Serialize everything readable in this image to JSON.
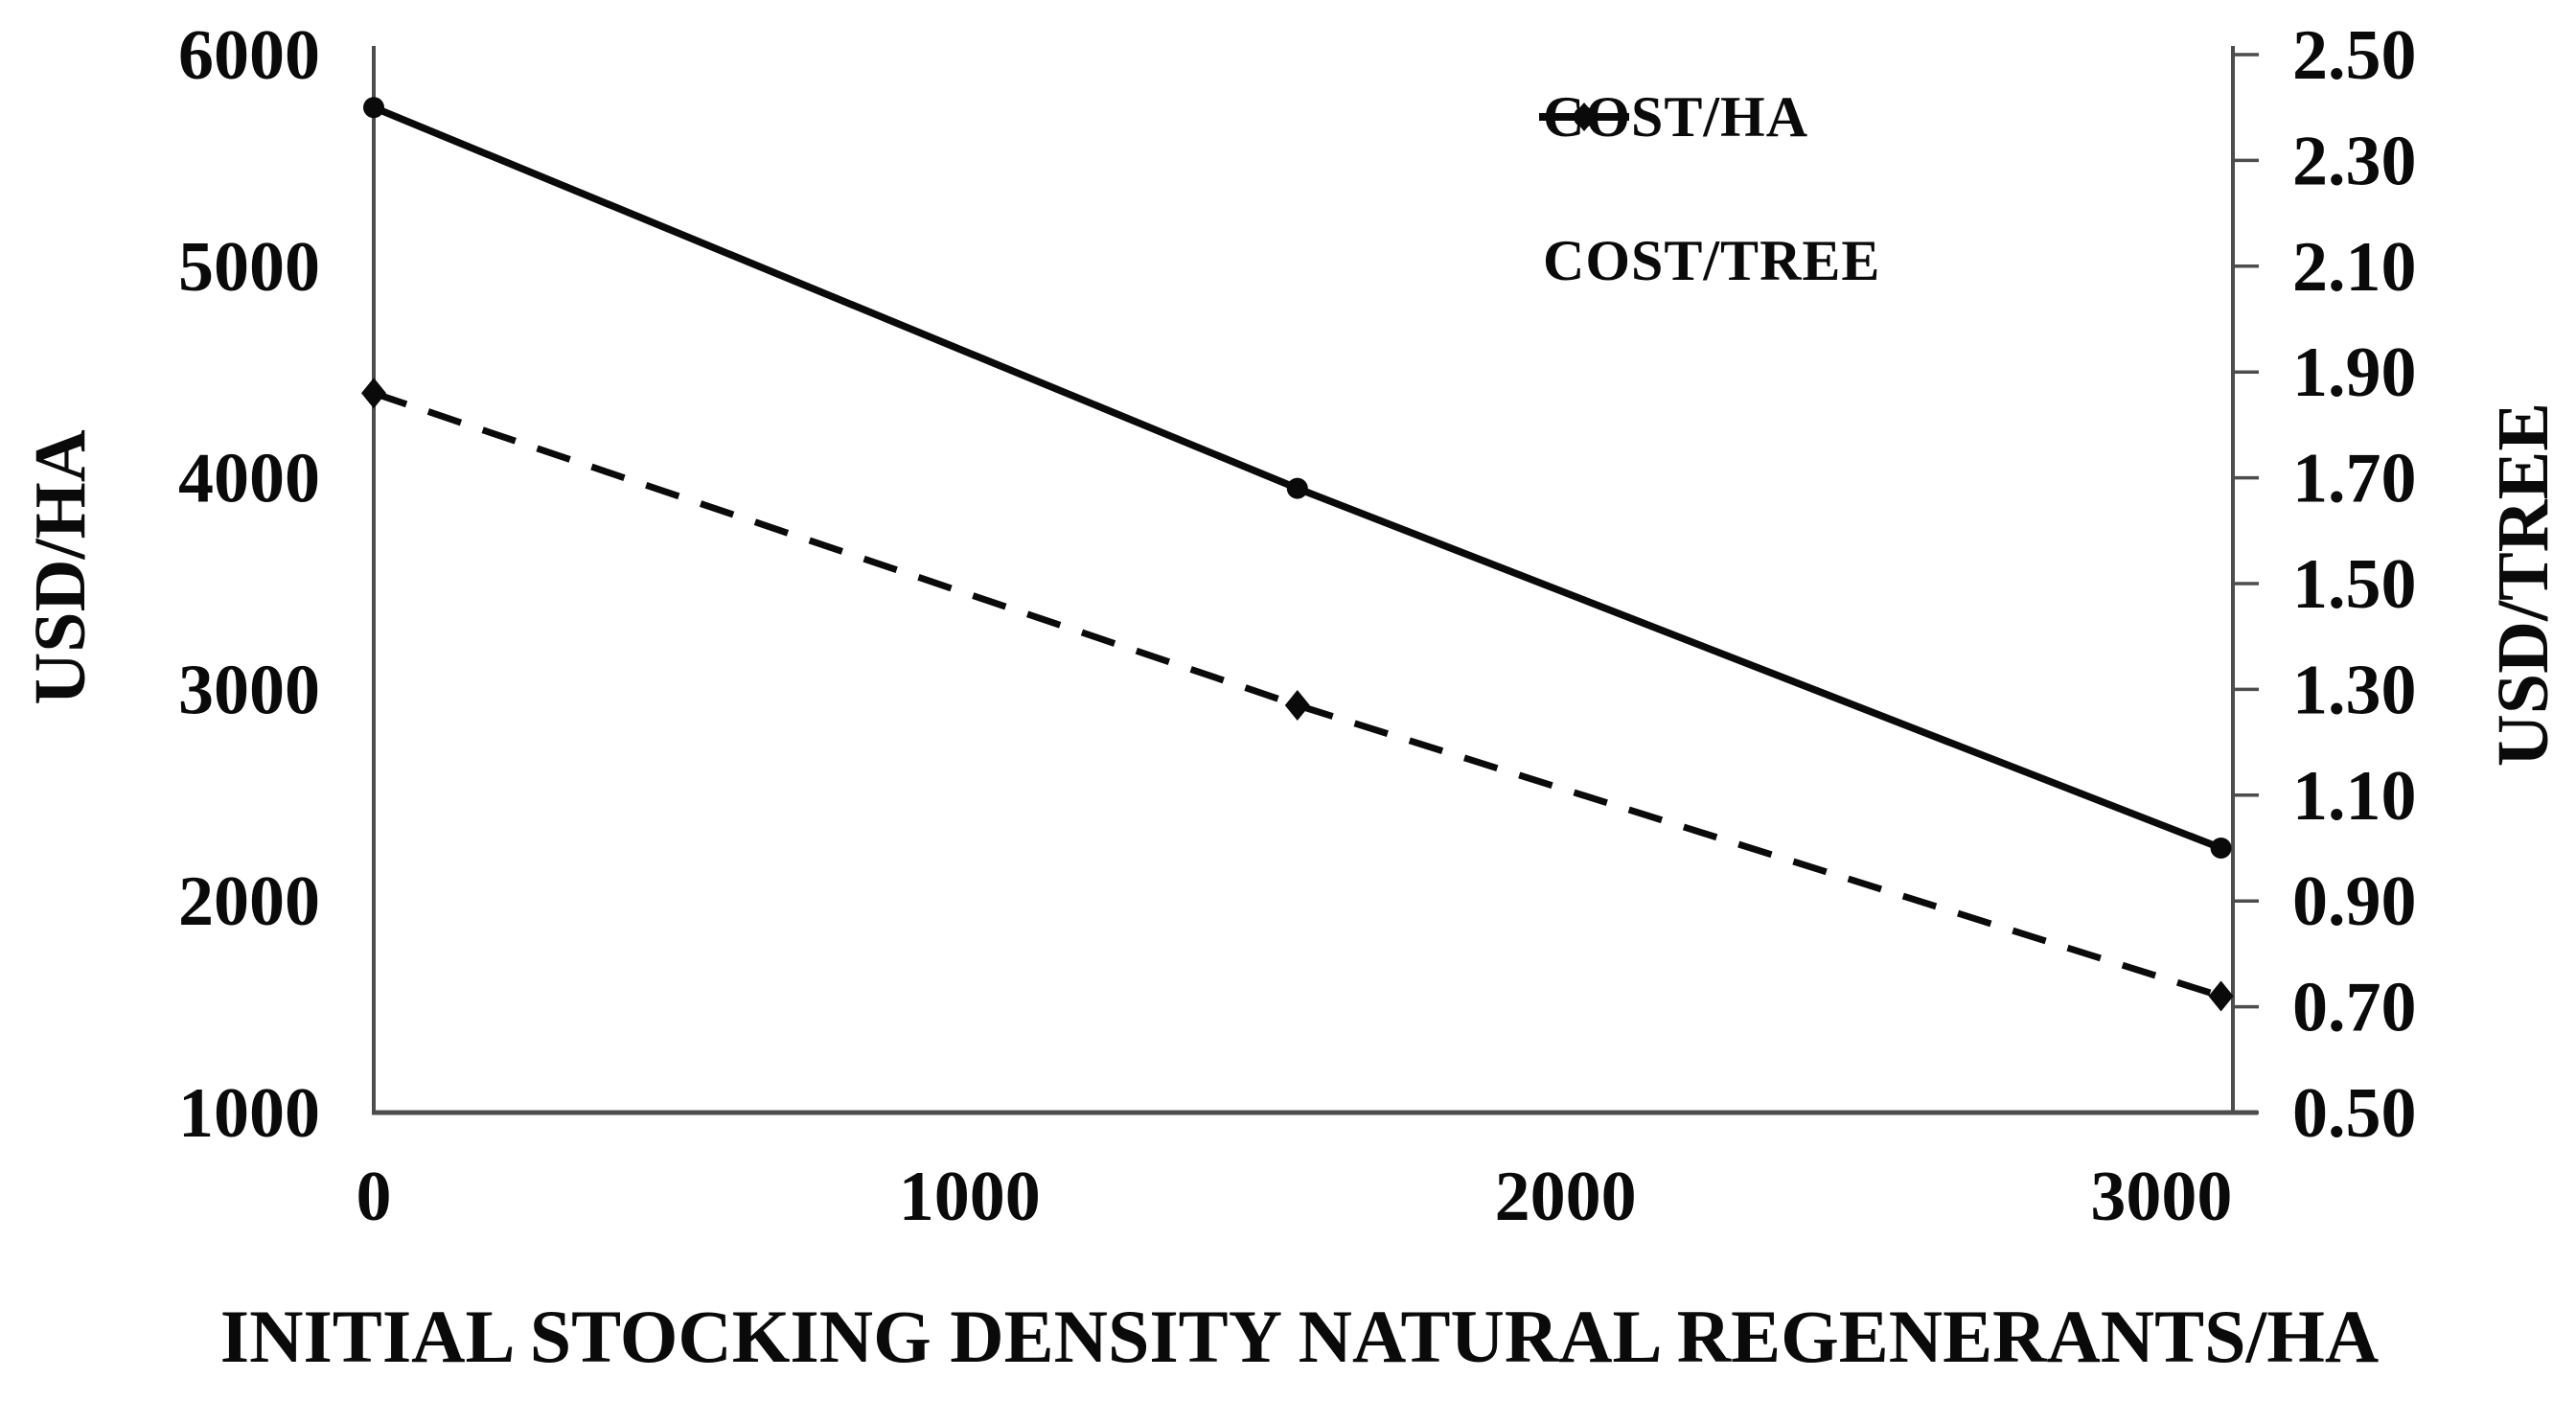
{
  "chart_data": {
    "type": "line",
    "title": "",
    "xlabel": "INITIAL STOCKING DENSITY NATURAL REGENERANTS/HA",
    "ylabel_left": "USD/HA",
    "ylabel_right": "USD/TREE",
    "x_axis": {
      "ticks": [
        0,
        1000,
        2000,
        3000
      ],
      "lim": [
        0,
        3120
      ]
    },
    "left_axis": {
      "ticks": [
        6000,
        5000,
        4000,
        3000,
        2000,
        1000
      ],
      "lim": [
        1000,
        6000
      ]
    },
    "right_axis": {
      "ticks": [
        2.5,
        2.3,
        2.1,
        1.9,
        1.7,
        1.5,
        1.3,
        1.1,
        0.9,
        0.7,
        0.5
      ],
      "lim": [
        0.5,
        2.5
      ],
      "decimals": 2
    },
    "grid": false,
    "legend_position": "top-right",
    "series": [
      {
        "name": "COST/HA",
        "axis": "left",
        "line": "solid",
        "marker": "circle",
        "x": [
          0,
          1550,
          3100
        ],
        "y": [
          5750,
          3950,
          2250
        ]
      },
      {
        "name": "COST/TREE",
        "axis": "right",
        "line": "dashed",
        "marker": "diamond",
        "x": [
          0,
          1550,
          3100
        ],
        "y": [
          1.86,
          1.27,
          0.72
        ]
      }
    ],
    "colors": {
      "ink": "#0a0a0a",
      "axis": "#4d4d4d",
      "background": "#ffffff"
    }
  }
}
